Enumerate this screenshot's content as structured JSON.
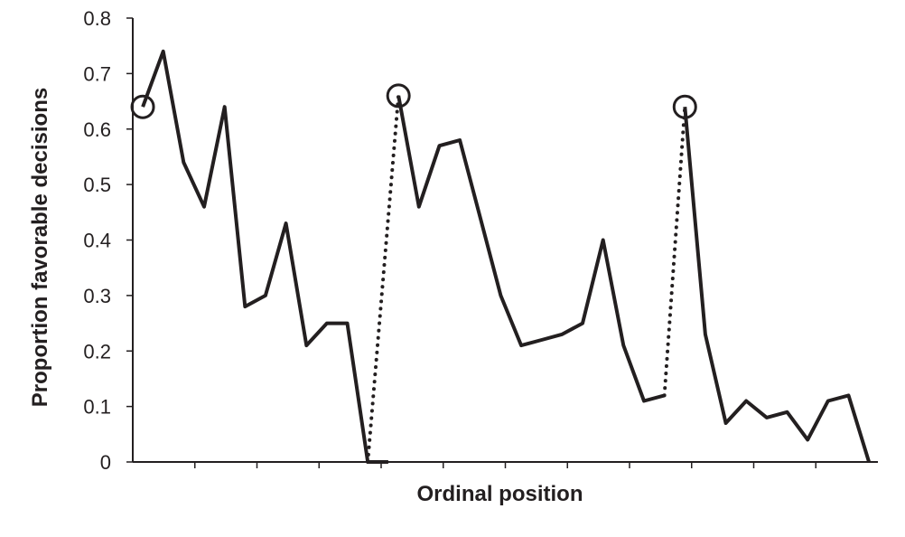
{
  "chart_data": {
    "type": "line",
    "title": "",
    "xlabel": "Ordinal position",
    "ylabel": "Proportion favorable decisions",
    "ylim": [
      0,
      0.8
    ],
    "yticks": [
      "0",
      "0.1",
      "0.2",
      "0.3",
      "0.4",
      "0.5",
      "0.6",
      "0.7",
      "0.8"
    ],
    "xlim": [
      0,
      36
    ],
    "grid": false,
    "legend": "none",
    "series": [
      {
        "x": [
          1,
          2,
          3,
          4,
          5,
          6,
          7,
          8,
          9,
          10,
          11,
          12,
          13
        ],
        "y": [
          0.64,
          0.74,
          0.54,
          0.46,
          0.64,
          0.28,
          0.3,
          0.43,
          0.21,
          0.25,
          0.25,
          0.0,
          0.0
        ]
      },
      {
        "x": [
          13.5,
          14.5,
          15.5,
          16.5,
          17.5,
          18.5,
          19.5,
          20.5,
          21.5,
          22.5,
          23.5,
          24.5,
          25.5,
          26.5
        ],
        "y": [
          0.66,
          0.46,
          0.57,
          0.58,
          0.44,
          0.3,
          0.21,
          0.22,
          0.23,
          0.25,
          0.4,
          0.21,
          0.11,
          0.12
        ]
      },
      {
        "x": [
          27.5,
          28.5,
          29.5,
          30.5,
          31.5,
          32.5,
          33.5,
          34.5,
          35.5,
          36.5
        ],
        "y": [
          0.64,
          0.23,
          0.07,
          0.11,
          0.08,
          0.09,
          0.04,
          0.11,
          0.12,
          0.0
        ]
      }
    ],
    "break_connectors": [
      {
        "from": [
          12,
          0.0
        ],
        "to": [
          13.5,
          0.66
        ]
      },
      {
        "from": [
          26.5,
          0.12
        ],
        "to": [
          27.5,
          0.64
        ]
      }
    ],
    "circled_points": [
      {
        "x": 1,
        "y": 0.64
      },
      {
        "x": 13.5,
        "y": 0.66
      },
      {
        "x": 27.5,
        "y": 0.64
      }
    ]
  }
}
